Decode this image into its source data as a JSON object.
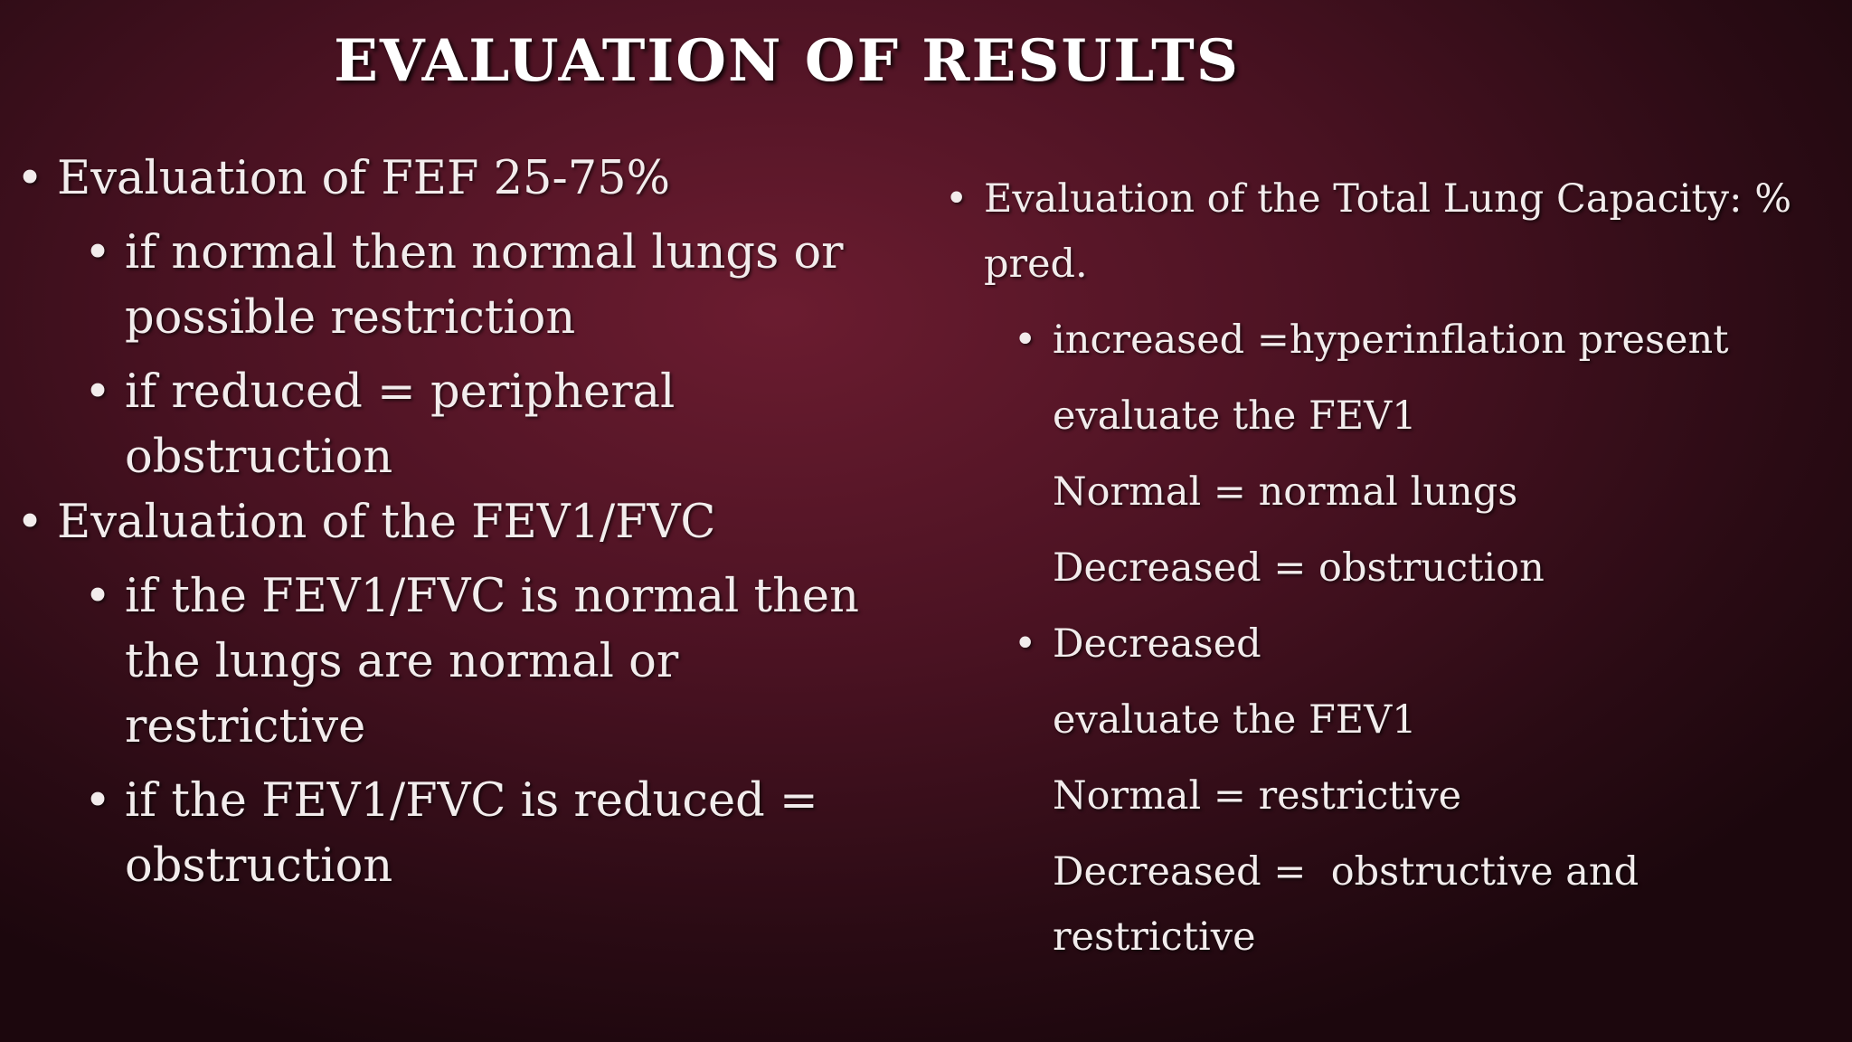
{
  "header": {
    "title": "EVALUATION OF RESULTS"
  },
  "left": [
    {
      "text": "Evaluation of FEF 25-75%",
      "sub": [
        "if normal then normal lungs or possible restriction",
        "if reduced = peripheral obstruction"
      ]
    },
    {
      "text": "Evaluation of the FEV1/FVC",
      "sub": [
        "if the FEV1/FVC is normal then the lungs are normal or restrictive",
        "if the FEV1/FVC is reduced = obstruction"
      ]
    }
  ],
  "right": [
    {
      "text": "Evaluation of the Total Lung Capacity: % pred.",
      "sub": [
        {
          "text": "increased =hyperinflation present",
          "lines": [
            "evaluate the FEV1",
            "Normal = normal lungs",
            "Decreased = obstruction"
          ]
        },
        {
          "text": "Decreased",
          "lines": [
            "evaluate the FEV1",
            "Normal = restrictive",
            "Decreased =  obstructive and restrictive"
          ]
        }
      ]
    }
  ]
}
